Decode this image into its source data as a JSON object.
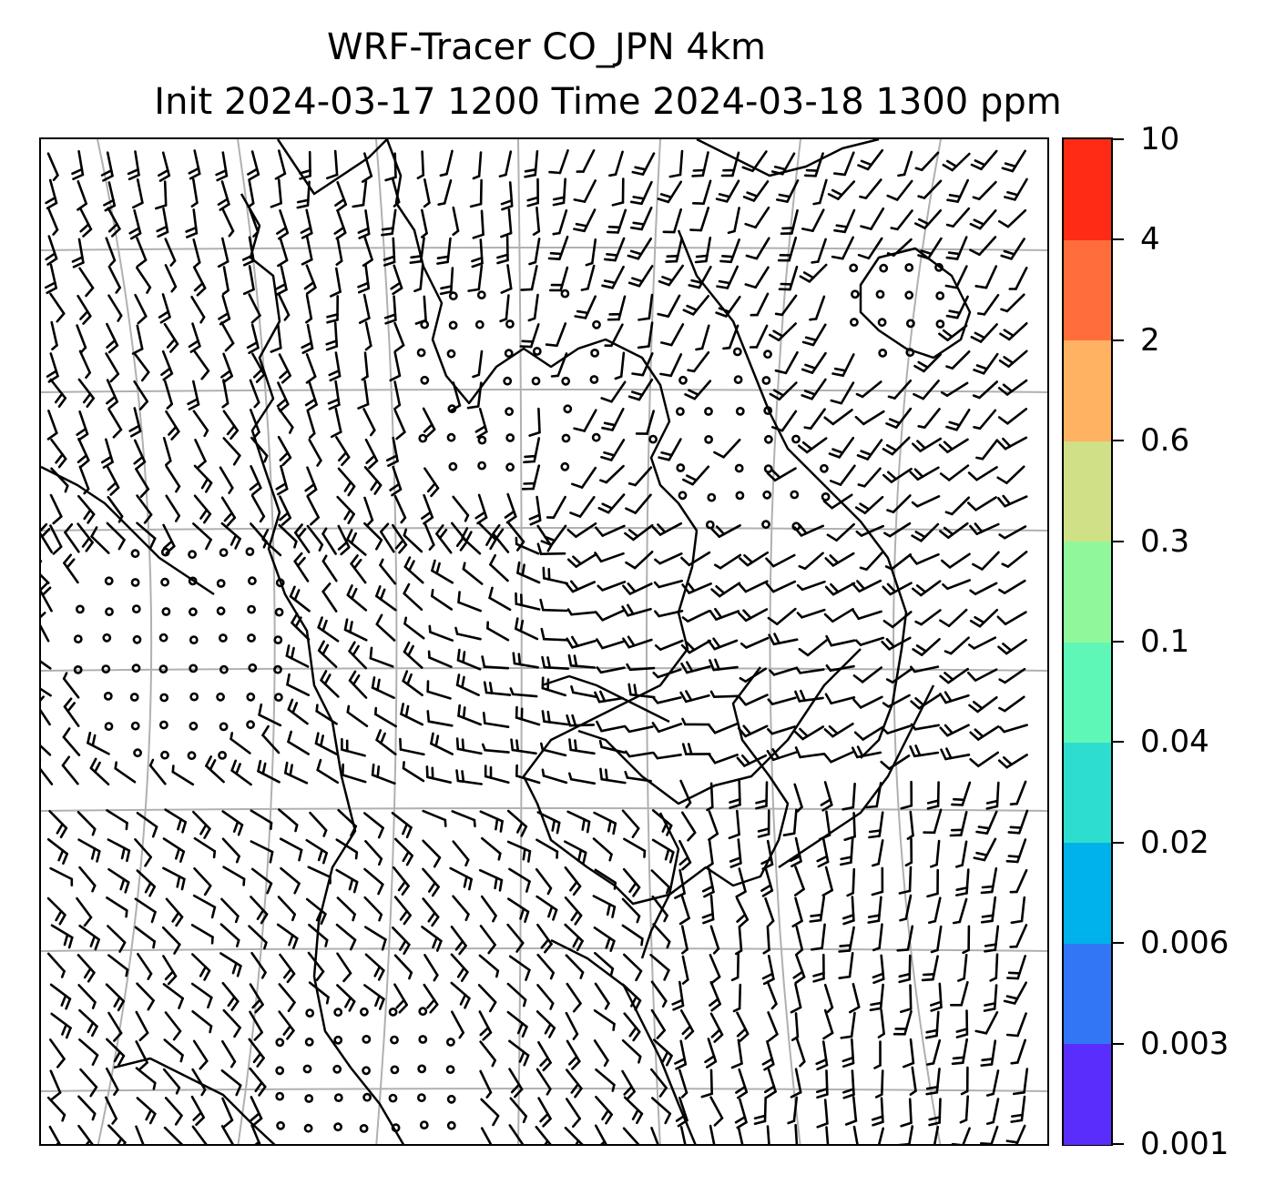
{
  "title": {
    "line1": "WRF-Tracer CO_JPN 4km",
    "line2": "Init 2024-03-17 1200 Time 2024-03-18 1300 ppm"
  },
  "colorbar": {
    "labels": [
      "10",
      "4",
      "2",
      "0.6",
      "0.3",
      "0.1",
      "0.04",
      "0.02",
      "0.006",
      "0.003",
      "0.001"
    ],
    "colors": [
      "#5a2dfd",
      "#3276f5",
      "#00b2ea",
      "#2ddecf",
      "#5ff7b7",
      "#91f79b",
      "#cfe087",
      "#ffb261",
      "#ff6d3a",
      "#ff2b14"
    ]
  },
  "map": {
    "layers": [
      "gridlines",
      "coastlines",
      "wind-barbs"
    ],
    "line_color": "#000000",
    "grid_color": "#b0b0b0"
  }
}
